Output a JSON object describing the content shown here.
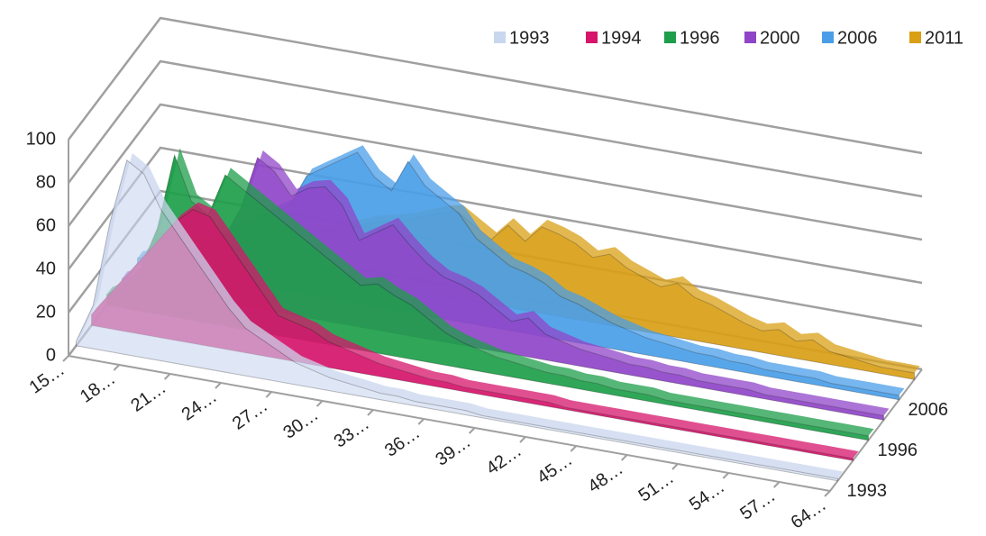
{
  "chart_data": {
    "type": "area3d",
    "categories": [
      "15…",
      null,
      null,
      "18…",
      null,
      null,
      "21…",
      null,
      null,
      "24…",
      null,
      null,
      "27…",
      null,
      null,
      "30…",
      null,
      null,
      "33…",
      null,
      null,
      "36…",
      null,
      null,
      "39…",
      null,
      null,
      "42…",
      null,
      null,
      "45…",
      null,
      null,
      "48…",
      null,
      null,
      "51…",
      null,
      null,
      "54…",
      null,
      null,
      "57…",
      null,
      null,
      "64…"
    ],
    "depth_labels": [
      "1993",
      null,
      "1996",
      null,
      "2006",
      null
    ],
    "series": [
      {
        "name": "1993",
        "color": "#c9d6ee",
        "values": [
          2,
          20,
          60,
          90,
          85,
          70,
          60,
          50,
          40,
          30,
          22,
          18,
          14,
          10,
          8,
          6,
          5,
          4,
          3,
          3,
          2,
          2,
          2,
          2,
          1,
          1,
          1,
          1,
          1,
          1,
          1,
          1,
          1,
          1,
          1,
          1,
          1,
          1,
          1,
          1,
          1,
          1,
          1,
          1,
          1,
          1
        ]
      },
      {
        "name": "1994",
        "color": "#d6156b",
        "values": [
          5,
          15,
          25,
          35,
          45,
          55,
          62,
          60,
          50,
          40,
          30,
          20,
          18,
          16,
          12,
          10,
          8,
          6,
          5,
          4,
          3,
          3,
          2,
          2,
          2,
          2,
          2,
          2,
          1,
          1,
          1,
          1,
          1,
          1,
          1,
          1,
          1,
          1,
          1,
          1,
          1,
          1,
          1,
          1,
          1,
          1
        ]
      },
      {
        "name": "1996",
        "color": "#1e9e4a",
        "values": [
          5,
          10,
          20,
          40,
          75,
          55,
          50,
          70,
          65,
          60,
          55,
          50,
          45,
          40,
          35,
          30,
          32,
          28,
          25,
          20,
          15,
          12,
          10,
          8,
          7,
          6,
          5,
          5,
          4,
          4,
          3,
          3,
          3,
          2,
          2,
          2,
          2,
          2,
          2,
          2,
          2,
          2,
          2,
          2,
          2,
          2
        ]
      },
      {
        "name": "2000",
        "color": "#8f45c8",
        "values": [
          3,
          6,
          10,
          15,
          20,
          25,
          30,
          45,
          70,
          65,
          55,
          60,
          62,
          55,
          40,
          45,
          50,
          42,
          35,
          30,
          28,
          25,
          20,
          15,
          18,
          12,
          10,
          8,
          7,
          6,
          5,
          5,
          4,
          4,
          3,
          3,
          3,
          3,
          2,
          2,
          2,
          2,
          2,
          2,
          2,
          2
        ]
      },
      {
        "name": "2006",
        "color": "#4a9ee8",
        "values": [
          3,
          5,
          8,
          10,
          15,
          20,
          25,
          30,
          35,
          40,
          55,
          60,
          65,
          70,
          60,
          55,
          70,
          60,
          55,
          50,
          40,
          35,
          30,
          28,
          25,
          20,
          18,
          15,
          12,
          10,
          8,
          7,
          6,
          5,
          5,
          4,
          4,
          3,
          3,
          3,
          3,
          2,
          2,
          2,
          2,
          2
        ]
      },
      {
        "name": "2011",
        "color": "#d9a016",
        "values": [
          2,
          3,
          4,
          5,
          6,
          8,
          10,
          12,
          15,
          18,
          20,
          22,
          25,
          28,
          30,
          32,
          35,
          38,
          40,
          35,
          30,
          38,
          32,
          40,
          38,
          35,
          30,
          33,
          28,
          25,
          22,
          25,
          20,
          18,
          15,
          12,
          10,
          12,
          8,
          10,
          6,
          5,
          4,
          3,
          3,
          3
        ]
      }
    ],
    "ylim": [
      0,
      100
    ],
    "yticks": [
      0,
      20,
      40,
      60,
      80,
      100
    ],
    "grid": true,
    "legend": "top-right"
  }
}
